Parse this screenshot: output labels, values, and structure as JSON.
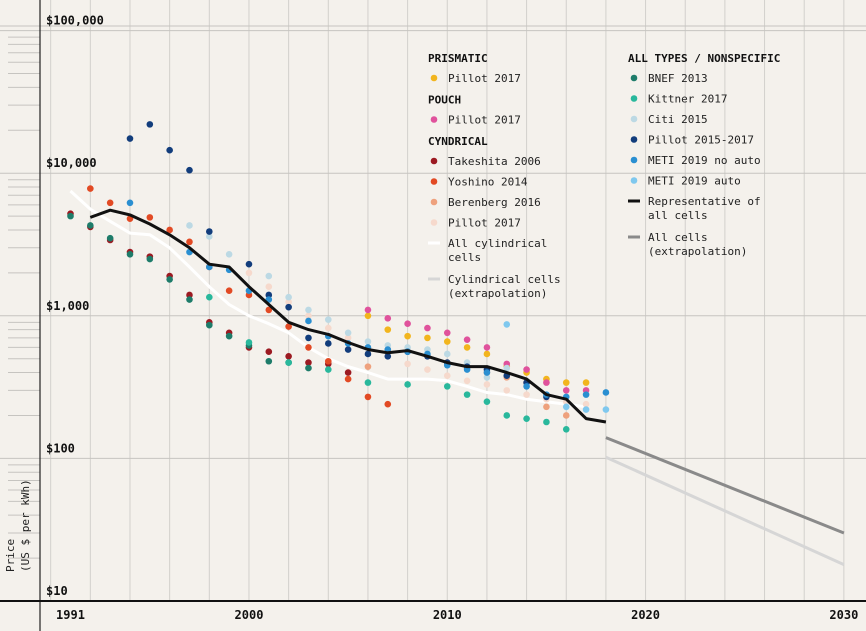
{
  "chart_data": {
    "type": "scatter",
    "title": "",
    "ylabel": "Price",
    "ylabel_unit": "(US $ per kWh)",
    "xlabel": "",
    "x_ticks": [
      "1991",
      "2000",
      "2010",
      "2020",
      "2030"
    ],
    "y_ticks": [
      "$10",
      "$100",
      "$1,000",
      "$10,000",
      "$100,000"
    ],
    "ylim": [
      10,
      100000
    ],
    "yscale": "log",
    "xlim": [
      1990,
      2030
    ],
    "grid": true,
    "legend_groups": [
      {
        "title": "PRISMATIC",
        "entries": [
          "Pillot 2017"
        ]
      },
      {
        "title": "POUCH",
        "entries": [
          "Pillot 2017"
        ]
      },
      {
        "title": "CYNDRICAL",
        "entries": [
          "Takeshita 2006",
          "Yoshino 2014",
          "Berenberg 2016",
          "Pillot 2017",
          "All cylindrical cells",
          "Cylindrical cells (extrapolation)"
        ]
      },
      {
        "title": "ALL TYPES / NONSPECIFIC",
        "entries": [
          "BNEF 2013",
          "Kittner 2017",
          "Citi 2015",
          "Pillot 2015-2017",
          "METI 2019 no auto",
          "METI 2019 auto",
          "Representative of all cells",
          "All cells (extrapolation)"
        ]
      }
    ],
    "series": [
      {
        "name": "Prismatic Pillot 2017",
        "group": "PRISMATIC",
        "color": "#f2b51e",
        "kind": "points",
        "points": [
          [
            2006,
            1000
          ],
          [
            2007,
            800
          ],
          [
            2008,
            720
          ],
          [
            2009,
            700
          ],
          [
            2010,
            660
          ],
          [
            2011,
            600
          ],
          [
            2012,
            540
          ],
          [
            2013,
            440
          ],
          [
            2014,
            400
          ],
          [
            2015,
            360
          ],
          [
            2016,
            340
          ],
          [
            2017,
            340
          ]
        ]
      },
      {
        "name": "Pouch Pillot 2017",
        "group": "POUCH",
        "color": "#e0529c",
        "kind": "points",
        "points": [
          [
            2006,
            1100
          ],
          [
            2007,
            960
          ],
          [
            2008,
            880
          ],
          [
            2009,
            820
          ],
          [
            2010,
            760
          ],
          [
            2011,
            680
          ],
          [
            2012,
            600
          ],
          [
            2013,
            460
          ],
          [
            2014,
            420
          ],
          [
            2015,
            340
          ],
          [
            2016,
            300
          ],
          [
            2017,
            300
          ]
        ]
      },
      {
        "name": "Takeshita 2006",
        "group": "CYNDRICAL",
        "color": "#9c1a22",
        "kind": "points",
        "points": [
          [
            1991,
            5200
          ],
          [
            1992,
            4200
          ],
          [
            1993,
            3400
          ],
          [
            1994,
            2800
          ],
          [
            1995,
            2600
          ],
          [
            1996,
            1900
          ],
          [
            1997,
            1400
          ],
          [
            1998,
            900
          ],
          [
            1999,
            760
          ],
          [
            2000,
            600
          ],
          [
            2001,
            560
          ],
          [
            2002,
            520
          ],
          [
            2003,
            470
          ],
          [
            2004,
            460
          ],
          [
            2005,
            400
          ]
        ]
      },
      {
        "name": "Yoshino 2014",
        "group": "CYNDRICAL",
        "color": "#e24a24",
        "kind": "points",
        "points": [
          [
            1992,
            7800
          ],
          [
            1993,
            6200
          ],
          [
            1994,
            4800
          ],
          [
            1995,
            4900
          ],
          [
            1996,
            4000
          ],
          [
            1997,
            3300
          ],
          [
            1998,
            2200
          ],
          [
            1999,
            1500
          ],
          [
            2000,
            1400
          ],
          [
            2001,
            1100
          ],
          [
            2002,
            840
          ],
          [
            2003,
            600
          ],
          [
            2004,
            480
          ],
          [
            2005,
            360
          ],
          [
            2006,
            270
          ],
          [
            2007,
            240
          ]
        ]
      },
      {
        "name": "Berenberg 2016",
        "group": "CYNDRICAL",
        "color": "#eea17d",
        "kind": "points",
        "points": [
          [
            2006,
            440
          ],
          [
            2007,
            580
          ],
          [
            2008,
            560
          ],
          [
            2009,
            520
          ],
          [
            2010,
            470
          ],
          [
            2011,
            430
          ],
          [
            2012,
            400
          ],
          [
            2013,
            370
          ],
          [
            2014,
            340
          ],
          [
            2015,
            230
          ],
          [
            2016,
            200
          ]
        ]
      },
      {
        "name": "Cylindrical Pillot 2017",
        "group": "CYNDRICAL",
        "color": "#f6d9cc",
        "kind": "points",
        "points": [
          [
            2000,
            2000
          ],
          [
            2001,
            1600
          ],
          [
            2002,
            1250
          ],
          [
            2003,
            1000
          ],
          [
            2004,
            820
          ],
          [
            2005,
            700
          ],
          [
            2006,
            600
          ],
          [
            2007,
            520
          ],
          [
            2008,
            460
          ],
          [
            2009,
            420
          ],
          [
            2010,
            380
          ],
          [
            2011,
            350
          ],
          [
            2012,
            330
          ],
          [
            2013,
            300
          ],
          [
            2014,
            280
          ],
          [
            2015,
            260
          ],
          [
            2016,
            250
          ],
          [
            2017,
            240
          ]
        ]
      },
      {
        "name": "All cylindrical cells",
        "group": "CYNDRICAL",
        "color": "#ffffff",
        "kind": "line",
        "points": [
          [
            1991,
            7500
          ],
          [
            1992,
            5600
          ],
          [
            1993,
            4600
          ],
          [
            1994,
            3800
          ],
          [
            1995,
            3700
          ],
          [
            1996,
            3000
          ],
          [
            1997,
            2200
          ],
          [
            1998,
            1600
          ],
          [
            1999,
            1200
          ],
          [
            2000,
            1000
          ],
          [
            2001,
            880
          ],
          [
            2002,
            760
          ],
          [
            2003,
            600
          ],
          [
            2004,
            500
          ],
          [
            2005,
            440
          ],
          [
            2006,
            400
          ],
          [
            2007,
            360
          ],
          [
            2008,
            360
          ],
          [
            2009,
            360
          ],
          [
            2010,
            350
          ],
          [
            2011,
            320
          ],
          [
            2012,
            290
          ],
          [
            2013,
            280
          ],
          [
            2014,
            260
          ],
          [
            2015,
            250
          ],
          [
            2016,
            240
          ],
          [
            2017,
            230
          ]
        ]
      },
      {
        "name": "Cylindrical cells (extrapolation)",
        "group": "CYNDRICAL",
        "color": "#d6d6d6",
        "kind": "line",
        "points": [
          [
            2018,
            102
          ],
          [
            2030,
            18
          ]
        ]
      },
      {
        "name": "BNEF 2013",
        "group": "ALL TYPES / NONSPECIFIC",
        "color": "#1e7c6a",
        "kind": "points",
        "points": [
          [
            1991,
            5000
          ],
          [
            1992,
            4300
          ],
          [
            1993,
            3500
          ],
          [
            1994,
            2700
          ],
          [
            1995,
            2500
          ],
          [
            1996,
            1800
          ],
          [
            1997,
            1300
          ],
          [
            1998,
            860
          ],
          [
            1999,
            720
          ],
          [
            2000,
            620
          ],
          [
            2001,
            480
          ],
          [
            2002,
            470
          ],
          [
            2003,
            430
          ]
        ]
      },
      {
        "name": "Kittner 2017",
        "group": "ALL TYPES / NONSPECIFIC",
        "color": "#29b89c",
        "kind": "points",
        "points": [
          [
            1998,
            1350
          ],
          [
            2000,
            650
          ],
          [
            2002,
            470
          ],
          [
            2004,
            420
          ],
          [
            2006,
            340
          ],
          [
            2008,
            330
          ],
          [
            2010,
            320
          ],
          [
            2011,
            280
          ],
          [
            2012,
            250
          ],
          [
            2013,
            200
          ],
          [
            2014,
            190
          ],
          [
            2015,
            180
          ],
          [
            2016,
            160
          ]
        ]
      },
      {
        "name": "Citi 2015",
        "group": "ALL TYPES / NONSPECIFIC",
        "color": "#bcd9e4",
        "kind": "points",
        "points": [
          [
            1997,
            4300
          ],
          [
            1998,
            3600
          ],
          [
            1999,
            2700
          ],
          [
            2001,
            1900
          ],
          [
            2002,
            1350
          ],
          [
            2003,
            1100
          ],
          [
            2004,
            940
          ],
          [
            2005,
            760
          ],
          [
            2006,
            660
          ],
          [
            2007,
            620
          ],
          [
            2008,
            600
          ],
          [
            2009,
            580
          ],
          [
            2010,
            540
          ],
          [
            2011,
            470
          ],
          [
            2012,
            370
          ],
          [
            2013,
            430
          ]
        ]
      },
      {
        "name": "Pillot 2015-2017",
        "group": "ALL TYPES / NONSPECIFIC",
        "color": "#123d7c",
        "kind": "points",
        "points": [
          [
            1994,
            17500
          ],
          [
            1995,
            22000
          ],
          [
            1996,
            14500
          ],
          [
            1997,
            10500
          ],
          [
            1998,
            3900
          ],
          [
            2000,
            2300
          ],
          [
            2001,
            1400
          ],
          [
            2002,
            1150
          ],
          [
            2003,
            700
          ],
          [
            2004,
            640
          ],
          [
            2005,
            580
          ],
          [
            2006,
            540
          ],
          [
            2007,
            520
          ],
          [
            2008,
            560
          ],
          [
            2009,
            520
          ],
          [
            2010,
            470
          ],
          [
            2011,
            440
          ],
          [
            2012,
            420
          ],
          [
            2013,
            380
          ],
          [
            2014,
            340
          ],
          [
            2015,
            270
          ]
        ]
      },
      {
        "name": "METI 2019 no auto",
        "group": "ALL TYPES / NONSPECIFIC",
        "color": "#2a8fd1",
        "kind": "points",
        "points": [
          [
            1994,
            6200
          ],
          [
            1997,
            2800
          ],
          [
            1998,
            2200
          ],
          [
            1999,
            2100
          ],
          [
            2000,
            1500
          ],
          [
            2001,
            1300
          ],
          [
            2003,
            920
          ],
          [
            2004,
            720
          ],
          [
            2005,
            640
          ],
          [
            2006,
            600
          ],
          [
            2007,
            580
          ],
          [
            2008,
            560
          ],
          [
            2009,
            540
          ],
          [
            2010,
            450
          ],
          [
            2011,
            420
          ],
          [
            2012,
            400
          ],
          [
            2014,
            320
          ],
          [
            2015,
            280
          ],
          [
            2016,
            270
          ],
          [
            2017,
            280
          ],
          [
            2018,
            290
          ]
        ]
      },
      {
        "name": "METI 2019 auto",
        "group": "ALL TYPES / NONSPECIFIC",
        "color": "#7fc8ee",
        "kind": "points",
        "points": [
          [
            2013,
            870
          ],
          [
            2016,
            230
          ],
          [
            2017,
            220
          ],
          [
            2018,
            220
          ]
        ]
      },
      {
        "name": "Representative of all cells",
        "group": "ALL TYPES / NONSPECIFIC",
        "color": "#111111",
        "kind": "line",
        "points": [
          [
            1992,
            4900
          ],
          [
            1993,
            5500
          ],
          [
            1994,
            5100
          ],
          [
            1995,
            4400
          ],
          [
            1996,
            3700
          ],
          [
            1997,
            3000
          ],
          [
            1998,
            2300
          ],
          [
            1999,
            2200
          ],
          [
            2000,
            1600
          ],
          [
            2001,
            1200
          ],
          [
            2002,
            900
          ],
          [
            2003,
            800
          ],
          [
            2004,
            740
          ],
          [
            2005,
            650
          ],
          [
            2006,
            580
          ],
          [
            2007,
            550
          ],
          [
            2008,
            570
          ],
          [
            2009,
            520
          ],
          [
            2010,
            470
          ],
          [
            2011,
            440
          ],
          [
            2012,
            440
          ],
          [
            2013,
            400
          ],
          [
            2014,
            360
          ],
          [
            2015,
            280
          ],
          [
            2016,
            260
          ],
          [
            2017,
            190
          ],
          [
            2018,
            180
          ]
        ]
      },
      {
        "name": "All cells (extrapolation)",
        "group": "ALL TYPES / NONSPECIFIC",
        "color": "#8a8a8a",
        "kind": "line",
        "points": [
          [
            2018,
            140
          ],
          [
            2030,
            30
          ]
        ]
      }
    ]
  },
  "legend_swatch_kinds": {
    "Pillot 2017": "points",
    "Representative of all cells": "line",
    "All cells (extrapolation)": "line",
    "All cylindrical cells": "line",
    "Cylindrical cells (extrapolation)": "line"
  }
}
